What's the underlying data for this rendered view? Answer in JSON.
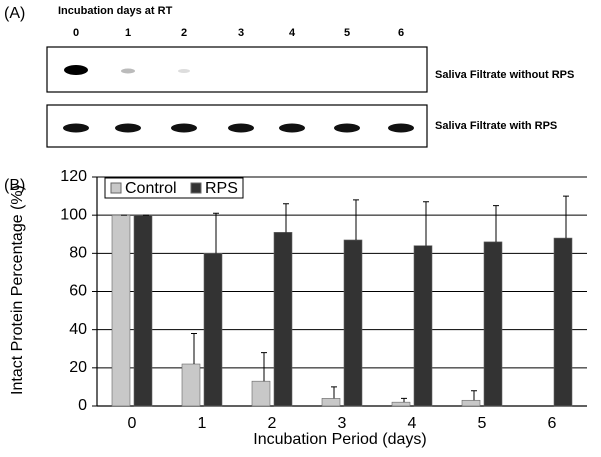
{
  "panel_a": {
    "label": "(A)",
    "header": "Incubation days at RT",
    "lanes": [
      "0",
      "1",
      "2",
      "3",
      "4",
      "5",
      "6"
    ],
    "rows": [
      "Saliva Filtrate without RPS",
      "Saliva Filtrate with RPS"
    ]
  },
  "chart_data": {
    "type": "bar",
    "label": "(B)",
    "y_label": "Intact Protein Percentage (%)",
    "x_label": "Incubation Period (days)",
    "categories": [
      "0",
      "1",
      "2",
      "3",
      "4",
      "5",
      "6"
    ],
    "series": [
      {
        "name": "Control",
        "color": "#c8c8c8",
        "values": [
          100,
          22,
          13,
          4,
          2,
          3,
          0
        ],
        "errors": [
          0,
          16,
          15,
          6,
          2,
          5,
          0
        ]
      },
      {
        "name": "RPS",
        "color": "#333333",
        "values": [
          100,
          80,
          91,
          87,
          84,
          86,
          88
        ],
        "errors": [
          0,
          21,
          15,
          21,
          23,
          19,
          22
        ]
      }
    ],
    "ylim": [
      0,
      120
    ],
    "yticks": [
      0,
      20,
      40,
      60,
      80,
      100,
      120
    ],
    "grid": true,
    "legend": "upper-left"
  }
}
